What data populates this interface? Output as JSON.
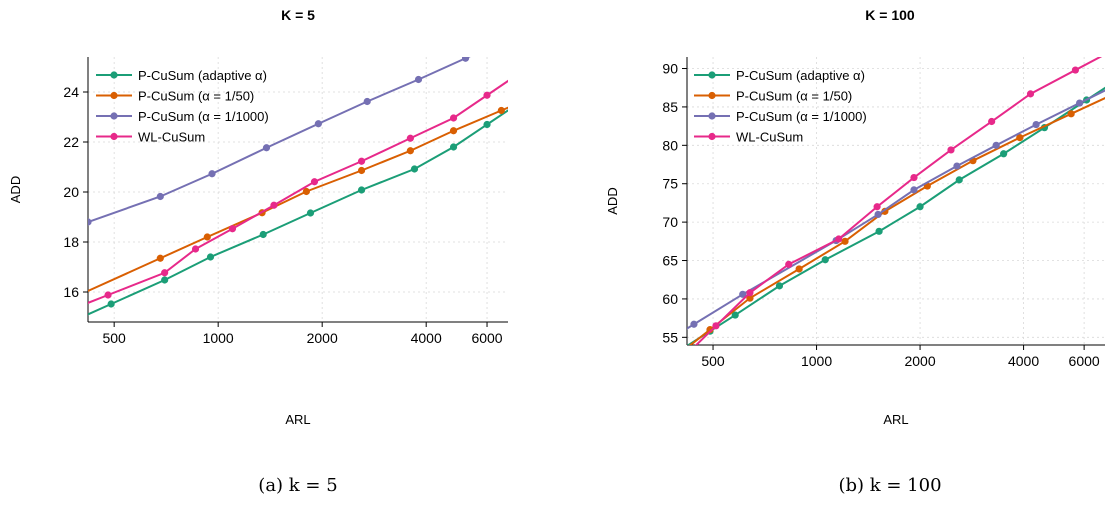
{
  "chart_data": [
    {
      "type": "line",
      "title": "K = 5",
      "caption": "(a) k = 5",
      "xlabel": "ARL",
      "ylabel": "ADD",
      "x_scale": "log",
      "xlim": [
        420,
        6900
      ],
      "ylim": [
        14.8,
        25.4
      ],
      "x_ticks": [
        500,
        1000,
        2000,
        4000,
        6000
      ],
      "x_tick_labels": [
        "500",
        "1000",
        "2000",
        "4000",
        "6000"
      ],
      "y_ticks": [
        16,
        18,
        20,
        22,
        24
      ],
      "y_tick_labels": [
        "16",
        "18",
        "20",
        "22",
        "24"
      ],
      "grid": true,
      "legend_position": "top-left",
      "series": [
        {
          "name": "P-CuSum (adaptive α)",
          "color": "#1b9e77",
          "x": [
            490,
            700,
            950,
            1350,
            1850,
            2600,
            3700,
            4800,
            6000
          ],
          "y": [
            15.52,
            16.48,
            17.4,
            18.3,
            19.16,
            20.08,
            20.92,
            21.8,
            22.7
          ]
        },
        {
          "name": "P-CuSum (α = 1/50)",
          "color": "#d95f02",
          "x": [
            680,
            930,
            1340,
            1800,
            2600,
            3600,
            4800,
            6600
          ],
          "y": [
            17.35,
            18.2,
            19.17,
            20.02,
            20.86,
            21.65,
            22.45,
            23.26
          ]
        },
        {
          "name": "P-CuSum (α = 1/1000)",
          "color": "#7570b3",
          "x": [
            420,
            680,
            960,
            1380,
            1950,
            2700,
            3800,
            5200
          ],
          "y": [
            18.8,
            19.82,
            20.73,
            21.77,
            22.73,
            23.62,
            24.5,
            25.35
          ]
        },
        {
          "name": "WL-CuSum",
          "color": "#e7298a",
          "x": [
            480,
            700,
            860,
            1100,
            1450,
            1900,
            2600,
            3600,
            4800,
            6000
          ],
          "y": [
            15.88,
            16.77,
            17.72,
            18.53,
            19.47,
            20.41,
            21.23,
            22.15,
            22.96,
            23.87
          ]
        }
      ]
    },
    {
      "type": "line",
      "title": "K = 100",
      "caption": "(b) k = 100",
      "xlabel": "ARL",
      "ylabel": "ADD",
      "x_scale": "log",
      "xlim": [
        420,
        6900
      ],
      "ylim": [
        54,
        91.5
      ],
      "x_ticks": [
        500,
        1000,
        2000,
        4000,
        6000
      ],
      "x_tick_labels": [
        "500",
        "1000",
        "2000",
        "4000",
        "6000"
      ],
      "y_ticks": [
        55,
        60,
        65,
        70,
        75,
        80,
        85,
        90
      ],
      "y_tick_labels": [
        "55",
        "60",
        "65",
        "70",
        "75",
        "80",
        "85",
        "90"
      ],
      "grid": true,
      "legend_position": "top-left",
      "series": [
        {
          "name": "P-CuSum (adaptive α)",
          "color": "#1b9e77",
          "x": [
            490,
            580,
            780,
            1060,
            1520,
            2000,
            2600,
            3500,
            4600,
            6100
          ],
          "y": [
            55.8,
            57.9,
            61.7,
            65.1,
            68.8,
            72.0,
            75.5,
            78.9,
            82.3,
            85.9
          ]
        },
        {
          "name": "P-CuSum (α = 1/50)",
          "color": "#d95f02",
          "x": [
            490,
            640,
            890,
            1210,
            1580,
            2100,
            2850,
            3900,
            5500
          ],
          "y": [
            56.0,
            60.1,
            63.9,
            67.5,
            71.4,
            74.7,
            78.0,
            81.0,
            84.1
          ]
        },
        {
          "name": "P-CuSum (α = 1/1000)",
          "color": "#7570b3",
          "x": [
            440,
            610,
            1140,
            1510,
            1920,
            2560,
            3330,
            4350,
            5820
          ],
          "y": [
            56.7,
            60.6,
            67.6,
            71.0,
            74.2,
            77.3,
            80.0,
            82.7,
            85.5
          ]
        },
        {
          "name": "WL-CuSum",
          "color": "#e7298a",
          "x": [
            510,
            640,
            830,
            1160,
            1500,
            1920,
            2460,
            3230,
            4190,
            5660
          ],
          "y": [
            56.5,
            60.8,
            64.5,
            67.8,
            72.0,
            75.8,
            79.4,
            83.1,
            86.7,
            89.8
          ]
        }
      ]
    }
  ]
}
